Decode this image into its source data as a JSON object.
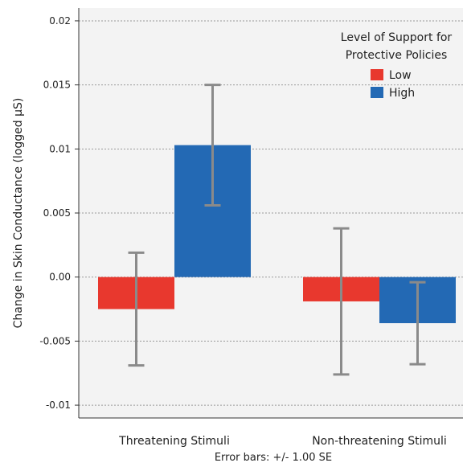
{
  "chart_data": {
    "type": "bar",
    "categories": [
      "Threatening Stimuli",
      "Non-threatening Stimuli"
    ],
    "series": [
      {
        "name": "Low",
        "color": "#e8382e",
        "values": [
          -0.0025,
          -0.0019
        ],
        "error": [
          0.0044,
          0.0057
        ]
      },
      {
        "name": "High",
        "color": "#2369b4",
        "values": [
          0.0103,
          -0.0036
        ],
        "error": [
          0.0047,
          0.0032
        ]
      }
    ],
    "ylabel": "Change in Skin Conductance (logged µS)",
    "xlabel": "",
    "ylim": [
      -0.011,
      0.021
    ],
    "yticks": [
      -0.01,
      -0.005,
      0.0,
      0.005,
      0.01,
      0.015,
      0.02
    ],
    "ytick_labels": [
      "-0.01",
      "-0.005",
      "0.00",
      "0.005",
      "0.01",
      "0.015",
      "0.02"
    ],
    "grid": true,
    "legend": {
      "title_lines": [
        "Level of Support for",
        "Protective Policies"
      ],
      "position": "top-right"
    },
    "footnote": "Error bars: +/- 1.00 SE",
    "error_bar_color": "#8a8a8a"
  }
}
